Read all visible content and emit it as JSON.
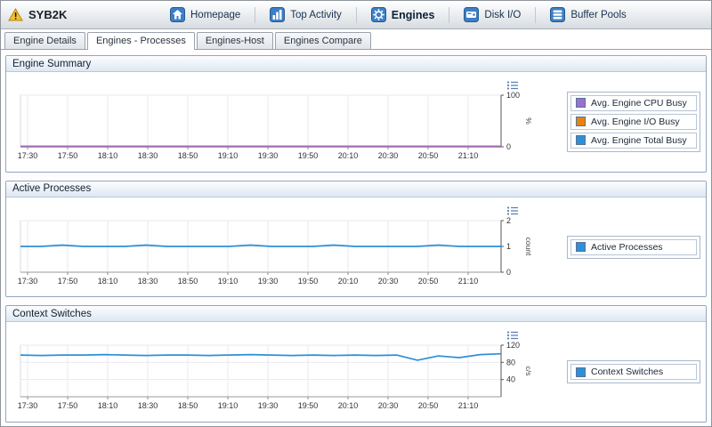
{
  "window": {
    "title": "SYB2K"
  },
  "nav": {
    "items": [
      {
        "label": "Homepage",
        "icon": "home-icon"
      },
      {
        "label": "Top Activity",
        "icon": "bar-chart-icon"
      },
      {
        "label": "Engines",
        "icon": "engine-icon",
        "active": true
      },
      {
        "label": "Disk I/O",
        "icon": "disk-icon"
      },
      {
        "label": "Buffer Pools",
        "icon": "buffer-pools-icon"
      }
    ]
  },
  "tabs": {
    "items": [
      {
        "label": "Engine Details"
      },
      {
        "label": "Engines - Processes",
        "active": true
      },
      {
        "label": "Engines-Host"
      },
      {
        "label": "Engines Compare"
      }
    ]
  },
  "panels": [
    {
      "title": "Engine Summary"
    },
    {
      "title": "Active Processes"
    },
    {
      "title": "Context Switches"
    }
  ],
  "colors": {
    "series_purple": "#9a6fd0",
    "series_orange": "#e8820e",
    "series_blue": "#2e8fd8",
    "warning_yellow": "#f6c12a"
  },
  "chart_data": [
    {
      "type": "line",
      "title": "Engine Summary",
      "x_ticks": [
        "17:30",
        "17:50",
        "18:10",
        "18:30",
        "18:50",
        "19:10",
        "19:30",
        "19:50",
        "20:10",
        "20:30",
        "20:50",
        "21:10"
      ],
      "ylim": [
        0,
        100
      ],
      "y_ticks": [
        0,
        100
      ],
      "y_unit": "%",
      "grid": true,
      "legend_position": "right",
      "series": [
        {
          "name": "Avg. Engine CPU Busy",
          "color": "#9a6fd0",
          "values": [
            1,
            1,
            1,
            1,
            1,
            1,
            1,
            1,
            1,
            1,
            1,
            1,
            1,
            1,
            1,
            1,
            1,
            1,
            1,
            1,
            1,
            1,
            1,
            1
          ]
        },
        {
          "name": "Avg. Engine I/O Busy",
          "color": "#e8820e",
          "values": [
            0,
            0,
            0,
            0,
            0,
            0,
            0,
            0,
            0,
            0,
            0,
            0,
            0,
            0,
            0,
            0,
            0,
            0,
            0,
            0,
            0,
            0,
            0,
            0
          ]
        },
        {
          "name": "Avg. Engine Total Busy",
          "color": "#2e8fd8",
          "values": [
            1,
            1,
            1,
            1,
            1,
            1,
            1,
            1,
            1,
            1,
            1,
            1,
            1,
            1,
            1,
            1,
            1,
            1,
            1,
            1,
            1,
            1,
            1,
            1
          ]
        }
      ]
    },
    {
      "type": "line",
      "title": "Active Processes",
      "x_ticks": [
        "17:30",
        "17:50",
        "18:10",
        "18:30",
        "18:50",
        "19:10",
        "19:30",
        "19:50",
        "20:10",
        "20:30",
        "20:50",
        "21:10"
      ],
      "ylim": [
        0,
        2
      ],
      "y_ticks": [
        0,
        1,
        2
      ],
      "y_unit": "count",
      "grid": true,
      "legend_position": "right",
      "series": [
        {
          "name": "Active Processes",
          "color": "#2e8fd8",
          "values": [
            1,
            1,
            1.05,
            1,
            1,
            1,
            1.05,
            1,
            1,
            1,
            1,
            1.05,
            1,
            1,
            1,
            1.05,
            1,
            1,
            1,
            1,
            1.05,
            1,
            1,
            1
          ]
        }
      ]
    },
    {
      "type": "line",
      "title": "Context Switches",
      "x_ticks": [
        "17:30",
        "17:50",
        "18:10",
        "18:30",
        "18:50",
        "19:10",
        "19:30",
        "19:50",
        "20:10",
        "20:30",
        "20:50",
        "21:10"
      ],
      "ylim": [
        0,
        120
      ],
      "y_ticks": [
        40,
        80,
        120
      ],
      "y_unit": "c/s",
      "grid": true,
      "legend_position": "right",
      "series": [
        {
          "name": "Context Switches",
          "color": "#2e8fd8",
          "values": [
            97,
            96,
            97,
            97,
            98,
            97,
            96,
            97,
            97,
            96,
            97,
            98,
            97,
            96,
            97,
            96,
            97,
            96,
            97,
            85,
            95,
            91,
            98,
            100
          ]
        }
      ]
    }
  ]
}
